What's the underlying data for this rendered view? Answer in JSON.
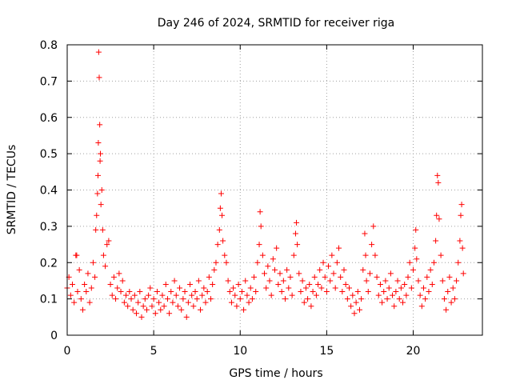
{
  "chart_data": {
    "type": "scatter",
    "title": "Day 246 of 2024, SRMTID for receiver riga",
    "xlabel": "GPS time / hours",
    "ylabel": "SRMTID / TECUs",
    "xlim": [
      0,
      24
    ],
    "ylim": [
      0,
      0.8
    ],
    "xticks": [
      0,
      5,
      10,
      15,
      20
    ],
    "yticks": [
      0,
      0.1,
      0.2,
      0.3,
      0.4,
      0.5,
      0.6,
      0.7,
      0.8
    ],
    "xtick_labels": [
      "0",
      "5",
      "10",
      "15",
      "20"
    ],
    "ytick_labels": [
      "0",
      "0.1",
      "0.2",
      "0.3",
      "0.4",
      "0.5",
      "0.6",
      "0.7",
      "0.8"
    ],
    "grid": true,
    "marker": "+",
    "color": "#ff0000",
    "series": [
      {
        "name": "SRMTID",
        "points": [
          [
            0.0,
            0.13
          ],
          [
            0.1,
            0.16
          ],
          [
            0.2,
            0.11
          ],
          [
            0.3,
            0.14
          ],
          [
            0.4,
            0.09
          ],
          [
            0.5,
            0.22
          ],
          [
            0.55,
            0.22
          ],
          [
            0.6,
            0.12
          ],
          [
            0.7,
            0.18
          ],
          [
            0.8,
            0.1
          ],
          [
            0.9,
            0.07
          ],
          [
            1.0,
            0.14
          ],
          [
            1.1,
            0.12
          ],
          [
            1.2,
            0.17
          ],
          [
            1.3,
            0.09
          ],
          [
            1.4,
            0.13
          ],
          [
            1.5,
            0.2
          ],
          [
            1.6,
            0.16
          ],
          [
            1.65,
            0.29
          ],
          [
            1.7,
            0.33
          ],
          [
            1.75,
            0.39
          ],
          [
            1.78,
            0.44
          ],
          [
            1.8,
            0.53
          ],
          [
            1.82,
            0.78
          ],
          [
            1.85,
            0.71
          ],
          [
            1.88,
            0.58
          ],
          [
            1.9,
            0.48
          ],
          [
            1.92,
            0.5
          ],
          [
            1.95,
            0.36
          ],
          [
            2.0,
            0.4
          ],
          [
            2.05,
            0.29
          ],
          [
            2.1,
            0.22
          ],
          [
            2.2,
            0.19
          ],
          [
            2.3,
            0.25
          ],
          [
            2.4,
            0.26
          ],
          [
            2.5,
            0.14
          ],
          [
            2.6,
            0.11
          ],
          [
            2.7,
            0.16
          ],
          [
            2.8,
            0.1
          ],
          [
            2.9,
            0.13
          ],
          [
            3.0,
            0.17
          ],
          [
            3.1,
            0.12
          ],
          [
            3.2,
            0.15
          ],
          [
            3.3,
            0.09
          ],
          [
            3.4,
            0.11
          ],
          [
            3.5,
            0.08
          ],
          [
            3.6,
            0.12
          ],
          [
            3.7,
            0.1
          ],
          [
            3.8,
            0.07
          ],
          [
            3.9,
            0.11
          ],
          [
            4.0,
            0.06
          ],
          [
            4.1,
            0.09
          ],
          [
            4.2,
            0.12
          ],
          [
            4.3,
            0.05
          ],
          [
            4.4,
            0.08
          ],
          [
            4.5,
            0.1
          ],
          [
            4.6,
            0.07
          ],
          [
            4.7,
            0.11
          ],
          [
            4.8,
            0.13
          ],
          [
            4.9,
            0.08
          ],
          [
            5.0,
            0.1
          ],
          [
            5.1,
            0.06
          ],
          [
            5.2,
            0.12
          ],
          [
            5.3,
            0.09
          ],
          [
            5.4,
            0.07
          ],
          [
            5.5,
            0.11
          ],
          [
            5.6,
            0.08
          ],
          [
            5.7,
            0.14
          ],
          [
            5.8,
            0.1
          ],
          [
            5.9,
            0.06
          ],
          [
            6.0,
            0.12
          ],
          [
            6.1,
            0.09
          ],
          [
            6.2,
            0.15
          ],
          [
            6.3,
            0.11
          ],
          [
            6.4,
            0.08
          ],
          [
            6.5,
            0.13
          ],
          [
            6.6,
            0.07
          ],
          [
            6.7,
            0.1
          ],
          [
            6.8,
            0.12
          ],
          [
            6.9,
            0.05
          ],
          [
            7.0,
            0.09
          ],
          [
            7.1,
            0.14
          ],
          [
            7.2,
            0.11
          ],
          [
            7.3,
            0.08
          ],
          [
            7.4,
            0.12
          ],
          [
            7.5,
            0.1
          ],
          [
            7.6,
            0.15
          ],
          [
            7.7,
            0.07
          ],
          [
            7.8,
            0.11
          ],
          [
            7.9,
            0.13
          ],
          [
            8.0,
            0.09
          ],
          [
            8.1,
            0.12
          ],
          [
            8.2,
            0.16
          ],
          [
            8.3,
            0.1
          ],
          [
            8.4,
            0.14
          ],
          [
            8.5,
            0.18
          ],
          [
            8.6,
            0.2
          ],
          [
            8.7,
            0.25
          ],
          [
            8.8,
            0.29
          ],
          [
            8.85,
            0.35
          ],
          [
            8.9,
            0.39
          ],
          [
            8.95,
            0.33
          ],
          [
            9.0,
            0.26
          ],
          [
            9.1,
            0.22
          ],
          [
            9.2,
            0.2
          ],
          [
            9.3,
            0.15
          ],
          [
            9.4,
            0.12
          ],
          [
            9.5,
            0.09
          ],
          [
            9.6,
            0.13
          ],
          [
            9.7,
            0.11
          ],
          [
            9.8,
            0.08
          ],
          [
            9.9,
            0.14
          ],
          [
            10.0,
            0.1
          ],
          [
            10.1,
            0.12
          ],
          [
            10.2,
            0.07
          ],
          [
            10.3,
            0.15
          ],
          [
            10.4,
            0.11
          ],
          [
            10.5,
            0.09
          ],
          [
            10.6,
            0.13
          ],
          [
            10.7,
            0.1
          ],
          [
            10.8,
            0.16
          ],
          [
            10.9,
            0.12
          ],
          [
            11.0,
            0.2
          ],
          [
            11.1,
            0.25
          ],
          [
            11.15,
            0.34
          ],
          [
            11.2,
            0.3
          ],
          [
            11.3,
            0.22
          ],
          [
            11.4,
            0.17
          ],
          [
            11.5,
            0.13
          ],
          [
            11.6,
            0.19
          ],
          [
            11.7,
            0.15
          ],
          [
            11.8,
            0.11
          ],
          [
            11.9,
            0.21
          ],
          [
            12.0,
            0.18
          ],
          [
            12.1,
            0.24
          ],
          [
            12.2,
            0.14
          ],
          [
            12.3,
            0.17
          ],
          [
            12.4,
            0.12
          ],
          [
            12.5,
            0.15
          ],
          [
            12.6,
            0.1
          ],
          [
            12.7,
            0.18
          ],
          [
            12.8,
            0.13
          ],
          [
            12.9,
            0.16
          ],
          [
            13.0,
            0.11
          ],
          [
            13.1,
            0.22
          ],
          [
            13.2,
            0.28
          ],
          [
            13.25,
            0.31
          ],
          [
            13.3,
            0.25
          ],
          [
            13.4,
            0.17
          ],
          [
            13.5,
            0.12
          ],
          [
            13.6,
            0.15
          ],
          [
            13.7,
            0.09
          ],
          [
            13.8,
            0.13
          ],
          [
            13.9,
            0.1
          ],
          [
            14.0,
            0.14
          ],
          [
            14.1,
            0.08
          ],
          [
            14.2,
            0.12
          ],
          [
            14.3,
            0.16
          ],
          [
            14.4,
            0.11
          ],
          [
            14.5,
            0.14
          ],
          [
            14.6,
            0.18
          ],
          [
            14.7,
            0.13
          ],
          [
            14.8,
            0.2
          ],
          [
            14.9,
            0.16
          ],
          [
            15.0,
            0.12
          ],
          [
            15.1,
            0.19
          ],
          [
            15.2,
            0.15
          ],
          [
            15.3,
            0.22
          ],
          [
            15.4,
            0.17
          ],
          [
            15.5,
            0.13
          ],
          [
            15.6,
            0.2
          ],
          [
            15.7,
            0.24
          ],
          [
            15.8,
            0.16
          ],
          [
            15.9,
            0.12
          ],
          [
            16.0,
            0.18
          ],
          [
            16.1,
            0.14
          ],
          [
            16.2,
            0.1
          ],
          [
            16.3,
            0.13
          ],
          [
            16.4,
            0.08
          ],
          [
            16.5,
            0.11
          ],
          [
            16.6,
            0.06
          ],
          [
            16.7,
            0.09
          ],
          [
            16.8,
            0.12
          ],
          [
            16.9,
            0.07
          ],
          [
            17.0,
            0.1
          ],
          [
            17.1,
            0.18
          ],
          [
            17.2,
            0.28
          ],
          [
            17.25,
            0.22
          ],
          [
            17.3,
            0.15
          ],
          [
            17.4,
            0.12
          ],
          [
            17.5,
            0.17
          ],
          [
            17.6,
            0.25
          ],
          [
            17.7,
            0.3
          ],
          [
            17.8,
            0.22
          ],
          [
            17.9,
            0.16
          ],
          [
            18.0,
            0.11
          ],
          [
            18.1,
            0.14
          ],
          [
            18.2,
            0.09
          ],
          [
            18.3,
            0.12
          ],
          [
            18.4,
            0.15
          ],
          [
            18.5,
            0.1
          ],
          [
            18.6,
            0.13
          ],
          [
            18.7,
            0.17
          ],
          [
            18.8,
            0.11
          ],
          [
            18.9,
            0.08
          ],
          [
            19.0,
            0.12
          ],
          [
            19.1,
            0.15
          ],
          [
            19.2,
            0.1
          ],
          [
            19.3,
            0.13
          ],
          [
            19.4,
            0.09
          ],
          [
            19.5,
            0.14
          ],
          [
            19.6,
            0.11
          ],
          [
            19.7,
            0.16
          ],
          [
            19.8,
            0.2
          ],
          [
            19.9,
            0.13
          ],
          [
            20.0,
            0.18
          ],
          [
            20.1,
            0.24
          ],
          [
            20.15,
            0.29
          ],
          [
            20.2,
            0.21
          ],
          [
            20.3,
            0.15
          ],
          [
            20.4,
            0.11
          ],
          [
            20.5,
            0.08
          ],
          [
            20.6,
            0.13
          ],
          [
            20.7,
            0.1
          ],
          [
            20.8,
            0.16
          ],
          [
            20.9,
            0.12
          ],
          [
            21.0,
            0.18
          ],
          [
            21.1,
            0.14
          ],
          [
            21.2,
            0.2
          ],
          [
            21.3,
            0.26
          ],
          [
            21.35,
            0.33
          ],
          [
            21.4,
            0.44
          ],
          [
            21.45,
            0.42
          ],
          [
            21.5,
            0.32
          ],
          [
            21.6,
            0.22
          ],
          [
            21.7,
            0.15
          ],
          [
            21.8,
            0.1
          ],
          [
            21.9,
            0.07
          ],
          [
            22.0,
            0.12
          ],
          [
            22.1,
            0.16
          ],
          [
            22.2,
            0.09
          ],
          [
            22.3,
            0.13
          ],
          [
            22.4,
            0.1
          ],
          [
            22.5,
            0.15
          ],
          [
            22.6,
            0.2
          ],
          [
            22.7,
            0.26
          ],
          [
            22.75,
            0.33
          ],
          [
            22.8,
            0.36
          ],
          [
            22.85,
            0.24
          ],
          [
            22.9,
            0.17
          ]
        ]
      }
    ]
  }
}
